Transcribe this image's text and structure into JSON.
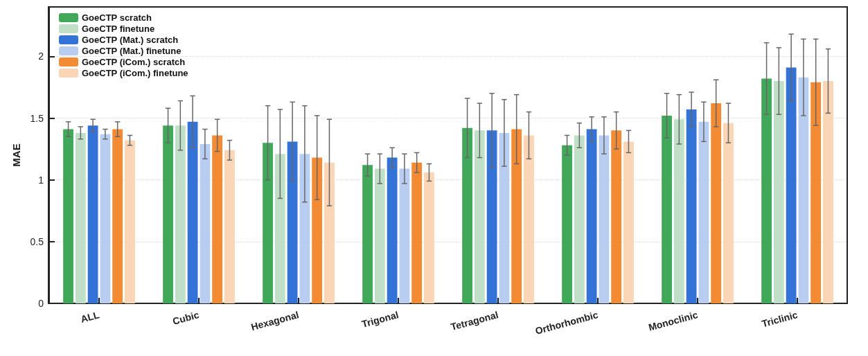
{
  "chart_data": {
    "type": "bar",
    "ylabel": "MAE",
    "categories": [
      "ALL",
      "Cubic",
      "Hexagonal",
      "Trigonal",
      "Tetragonal",
      "Orthorhombic",
      "Monoclinic",
      "Triclinic"
    ],
    "series": [
      {
        "name": "GoeCTP scratch",
        "color": "#41a85a",
        "values": [
          1.41,
          1.44,
          1.3,
          1.12,
          1.42,
          1.28,
          1.52,
          1.82
        ],
        "errors": [
          0.06,
          0.14,
          0.3,
          0.09,
          0.24,
          0.08,
          0.18,
          0.29
        ]
      },
      {
        "name": "GoeCTP finetune",
        "color": "#bfe0c6",
        "values": [
          1.38,
          1.44,
          1.21,
          1.09,
          1.4,
          1.36,
          1.49,
          1.8
        ],
        "errors": [
          0.05,
          0.2,
          0.36,
          0.12,
          0.22,
          0.1,
          0.2,
          0.27
        ]
      },
      {
        "name": "GoeCTP (Mat.) scratch",
        "color": "#3373d8",
        "values": [
          1.44,
          1.47,
          1.31,
          1.18,
          1.4,
          1.41,
          1.57,
          1.91
        ],
        "errors": [
          0.05,
          0.21,
          0.32,
          0.08,
          0.3,
          0.1,
          0.14,
          0.27
        ]
      },
      {
        "name": "GoeCTP (Mat.) finetune",
        "color": "#b8cdf0",
        "values": [
          1.37,
          1.29,
          1.21,
          1.09,
          1.38,
          1.36,
          1.47,
          1.83
        ],
        "errors": [
          0.04,
          0.12,
          0.39,
          0.12,
          0.27,
          0.15,
          0.16,
          0.31
        ]
      },
      {
        "name": "GoeCTP (iCom.) scratch",
        "color": "#f28b33",
        "values": [
          1.41,
          1.36,
          1.18,
          1.14,
          1.41,
          1.4,
          1.62,
          1.79
        ],
        "errors": [
          0.06,
          0.13,
          0.34,
          0.08,
          0.28,
          0.15,
          0.19,
          0.35
        ]
      },
      {
        "name": "GoeCTP (iCom.) finetune",
        "color": "#fad5b6",
        "values": [
          1.32,
          1.24,
          1.14,
          1.06,
          1.36,
          1.31,
          1.46,
          1.8
        ],
        "errors": [
          0.04,
          0.08,
          0.35,
          0.07,
          0.19,
          0.09,
          0.16,
          0.26
        ]
      }
    ],
    "ylim": [
      0,
      2.4
    ],
    "yticks": [
      0,
      0.5,
      1,
      1.5,
      2
    ],
    "grid": "y",
    "legend": "top left"
  }
}
